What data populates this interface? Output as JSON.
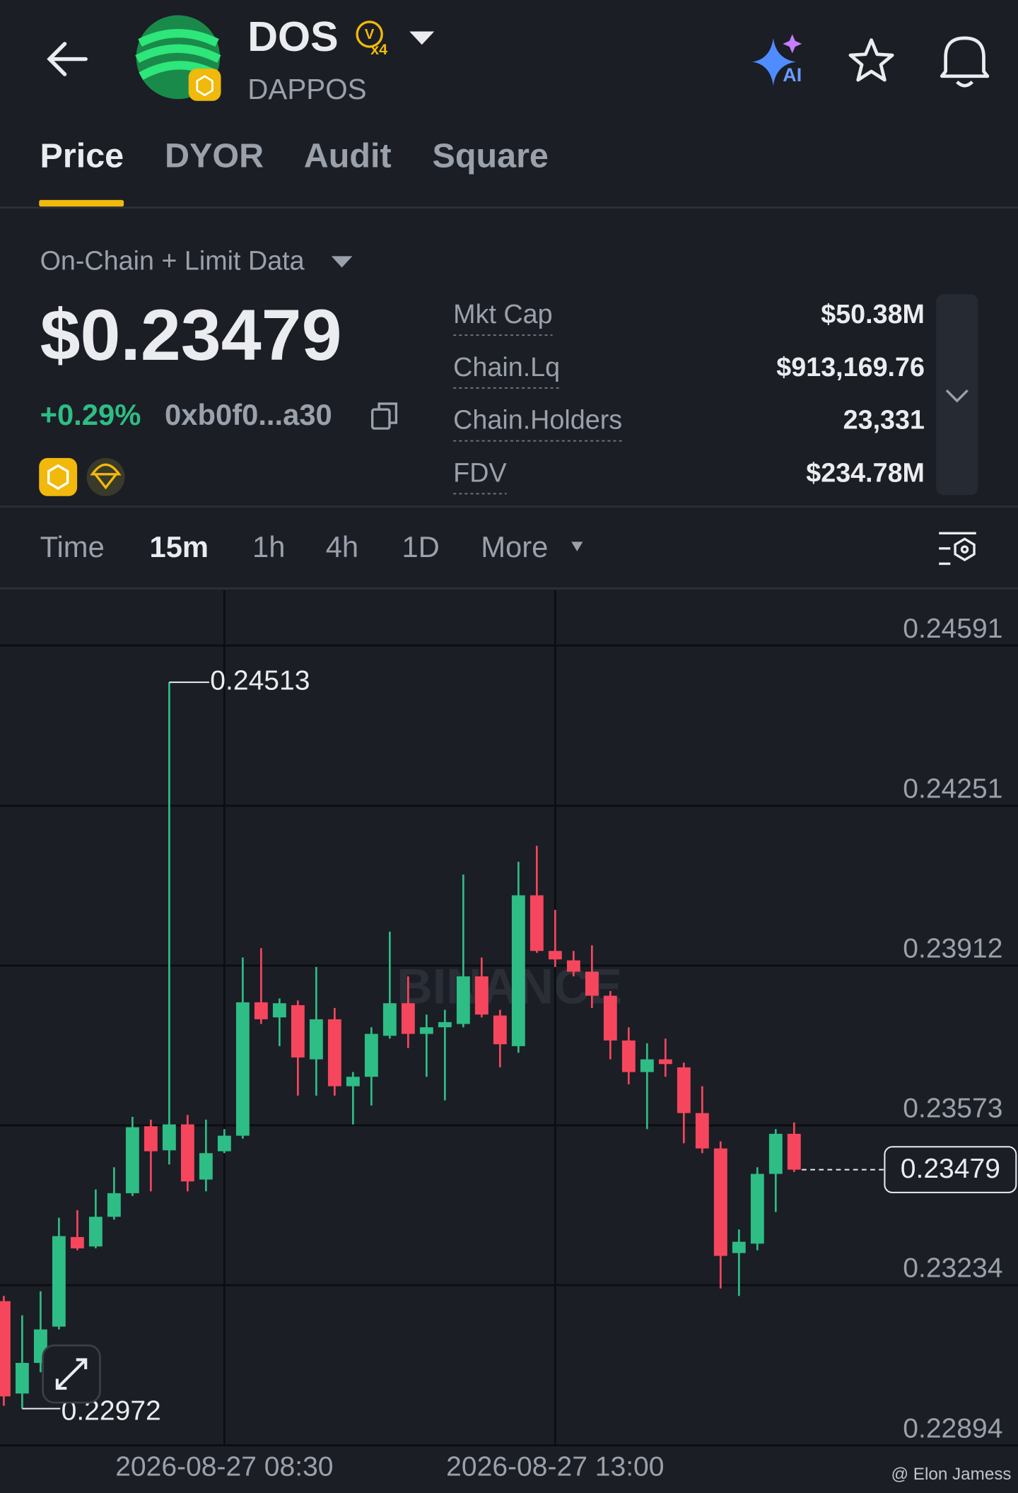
{
  "header": {
    "title": "DOS",
    "badge_letter": "V",
    "badge": "x4",
    "subtitle": "DAPPOS",
    "ai_label": "AI"
  },
  "tabs": [
    "Price",
    "DYOR",
    "Audit",
    "Square"
  ],
  "data_source": "On-Chain + Limit Data",
  "price": "$0.23479",
  "change": "+0.29%",
  "address": "0xb0f0...a30",
  "stats": [
    {
      "label": "Mkt Cap",
      "value": "$50.38M"
    },
    {
      "label": "Chain.Lq",
      "value": "$913,169.76"
    },
    {
      "label": "Chain.Holders",
      "value": "23,331"
    },
    {
      "label": "FDV",
      "value": "$234.78M"
    }
  ],
  "intervals": [
    "Time",
    "15m",
    "1h",
    "4h",
    "1D",
    "More"
  ],
  "watermark": "BINANCE",
  "credit": "@ Elon Jamess",
  "chart_data": {
    "type": "candlestick",
    "up_color": "#2ebd85",
    "down_color": "#f6465d",
    "categories": [
      null,
      null,
      null,
      null,
      null,
      null,
      null,
      null,
      null,
      null,
      null,
      null,
      "2026-08-27 08:30",
      null,
      null,
      null,
      null,
      null,
      null,
      null,
      null,
      null,
      null,
      null,
      null,
      null,
      null,
      null,
      null,
      null,
      "2026-08-27 13:00",
      null,
      null,
      null,
      null,
      null,
      null,
      null,
      null,
      null,
      null,
      null,
      null,
      null
    ],
    "open": [
      0.232,
      0.23004,
      0.23069,
      0.23146,
      0.23336,
      0.23316,
      0.23379,
      0.23429,
      0.23571,
      0.2352,
      0.23575,
      0.23458,
      0.23518,
      0.23551,
      0.23834,
      0.23802,
      0.23828,
      0.23713,
      0.23798,
      0.23656,
      0.23676,
      0.23763,
      0.23832,
      0.23767,
      0.23781,
      0.23788,
      0.23889,
      0.23806,
      0.23741,
      0.24061,
      0.23943,
      0.23923,
      0.23899,
      0.23848,
      0.23753,
      0.23686,
      0.23713,
      0.23696,
      0.23599,
      0.23524,
      0.23302,
      0.23322,
      0.2347,
      0.23555
    ],
    "high": [
      0.23211,
      0.2317,
      0.23221,
      0.23377,
      0.23393,
      0.23437,
      0.23484,
      0.23591,
      0.23585,
      0.24513,
      0.23595,
      0.23585,
      0.23565,
      0.23929,
      0.23949,
      0.23842,
      0.23838,
      0.23909,
      0.23822,
      0.23686,
      0.23781,
      0.23984,
      0.23889,
      0.23808,
      0.23818,
      0.24105,
      0.23929,
      0.23818,
      0.24132,
      0.24166,
      0.2403,
      0.23943,
      0.23955,
      0.23858,
      0.23781,
      0.23747,
      0.23757,
      0.23706,
      0.23656,
      0.23539,
      0.23352,
      0.23484,
      0.23565,
      0.23579
    ],
    "low": [
      0.22978,
      0.22972,
      0.23049,
      0.2314,
      0.23308,
      0.23312,
      0.23373,
      0.23423,
      0.23433,
      0.2349,
      0.23433,
      0.23433,
      0.23514,
      0.23545,
      0.23788,
      0.23741,
      0.23636,
      0.23636,
      0.23636,
      0.23575,
      0.23615,
      0.23757,
      0.23737,
      0.23676,
      0.23626,
      0.23781,
      0.23802,
      0.23696,
      0.23727,
      0.23939,
      0.23909,
      0.23889,
      0.23822,
      0.23713,
      0.2366,
      0.23565,
      0.23676,
      0.23535,
      0.23514,
      0.23227,
      0.23211,
      0.23308,
      0.23389,
      0.23474
    ],
    "close": [
      0.22998,
      0.23069,
      0.2314,
      0.23338,
      0.23312,
      0.23379,
      0.23429,
      0.23569,
      0.23518,
      0.23575,
      0.23454,
      0.23514,
      0.23551,
      0.23834,
      0.23798,
      0.23832,
      0.23717,
      0.23798,
      0.23656,
      0.23676,
      0.23767,
      0.23832,
      0.23767,
      0.23781,
      0.23792,
      0.23889,
      0.23808,
      0.23745,
      0.24061,
      0.23943,
      0.23925,
      0.23899,
      0.23848,
      0.23753,
      0.23686,
      0.23713,
      0.23703,
      0.23599,
      0.23524,
      0.23296,
      0.23326,
      0.2347,
      0.23555,
      0.23479
    ],
    "ylim": [
      0.22894,
      0.24708
    ],
    "yticks": [
      0.24591,
      0.24251,
      0.23912,
      0.23573,
      0.23234,
      0.22894
    ],
    "grid": true
  }
}
